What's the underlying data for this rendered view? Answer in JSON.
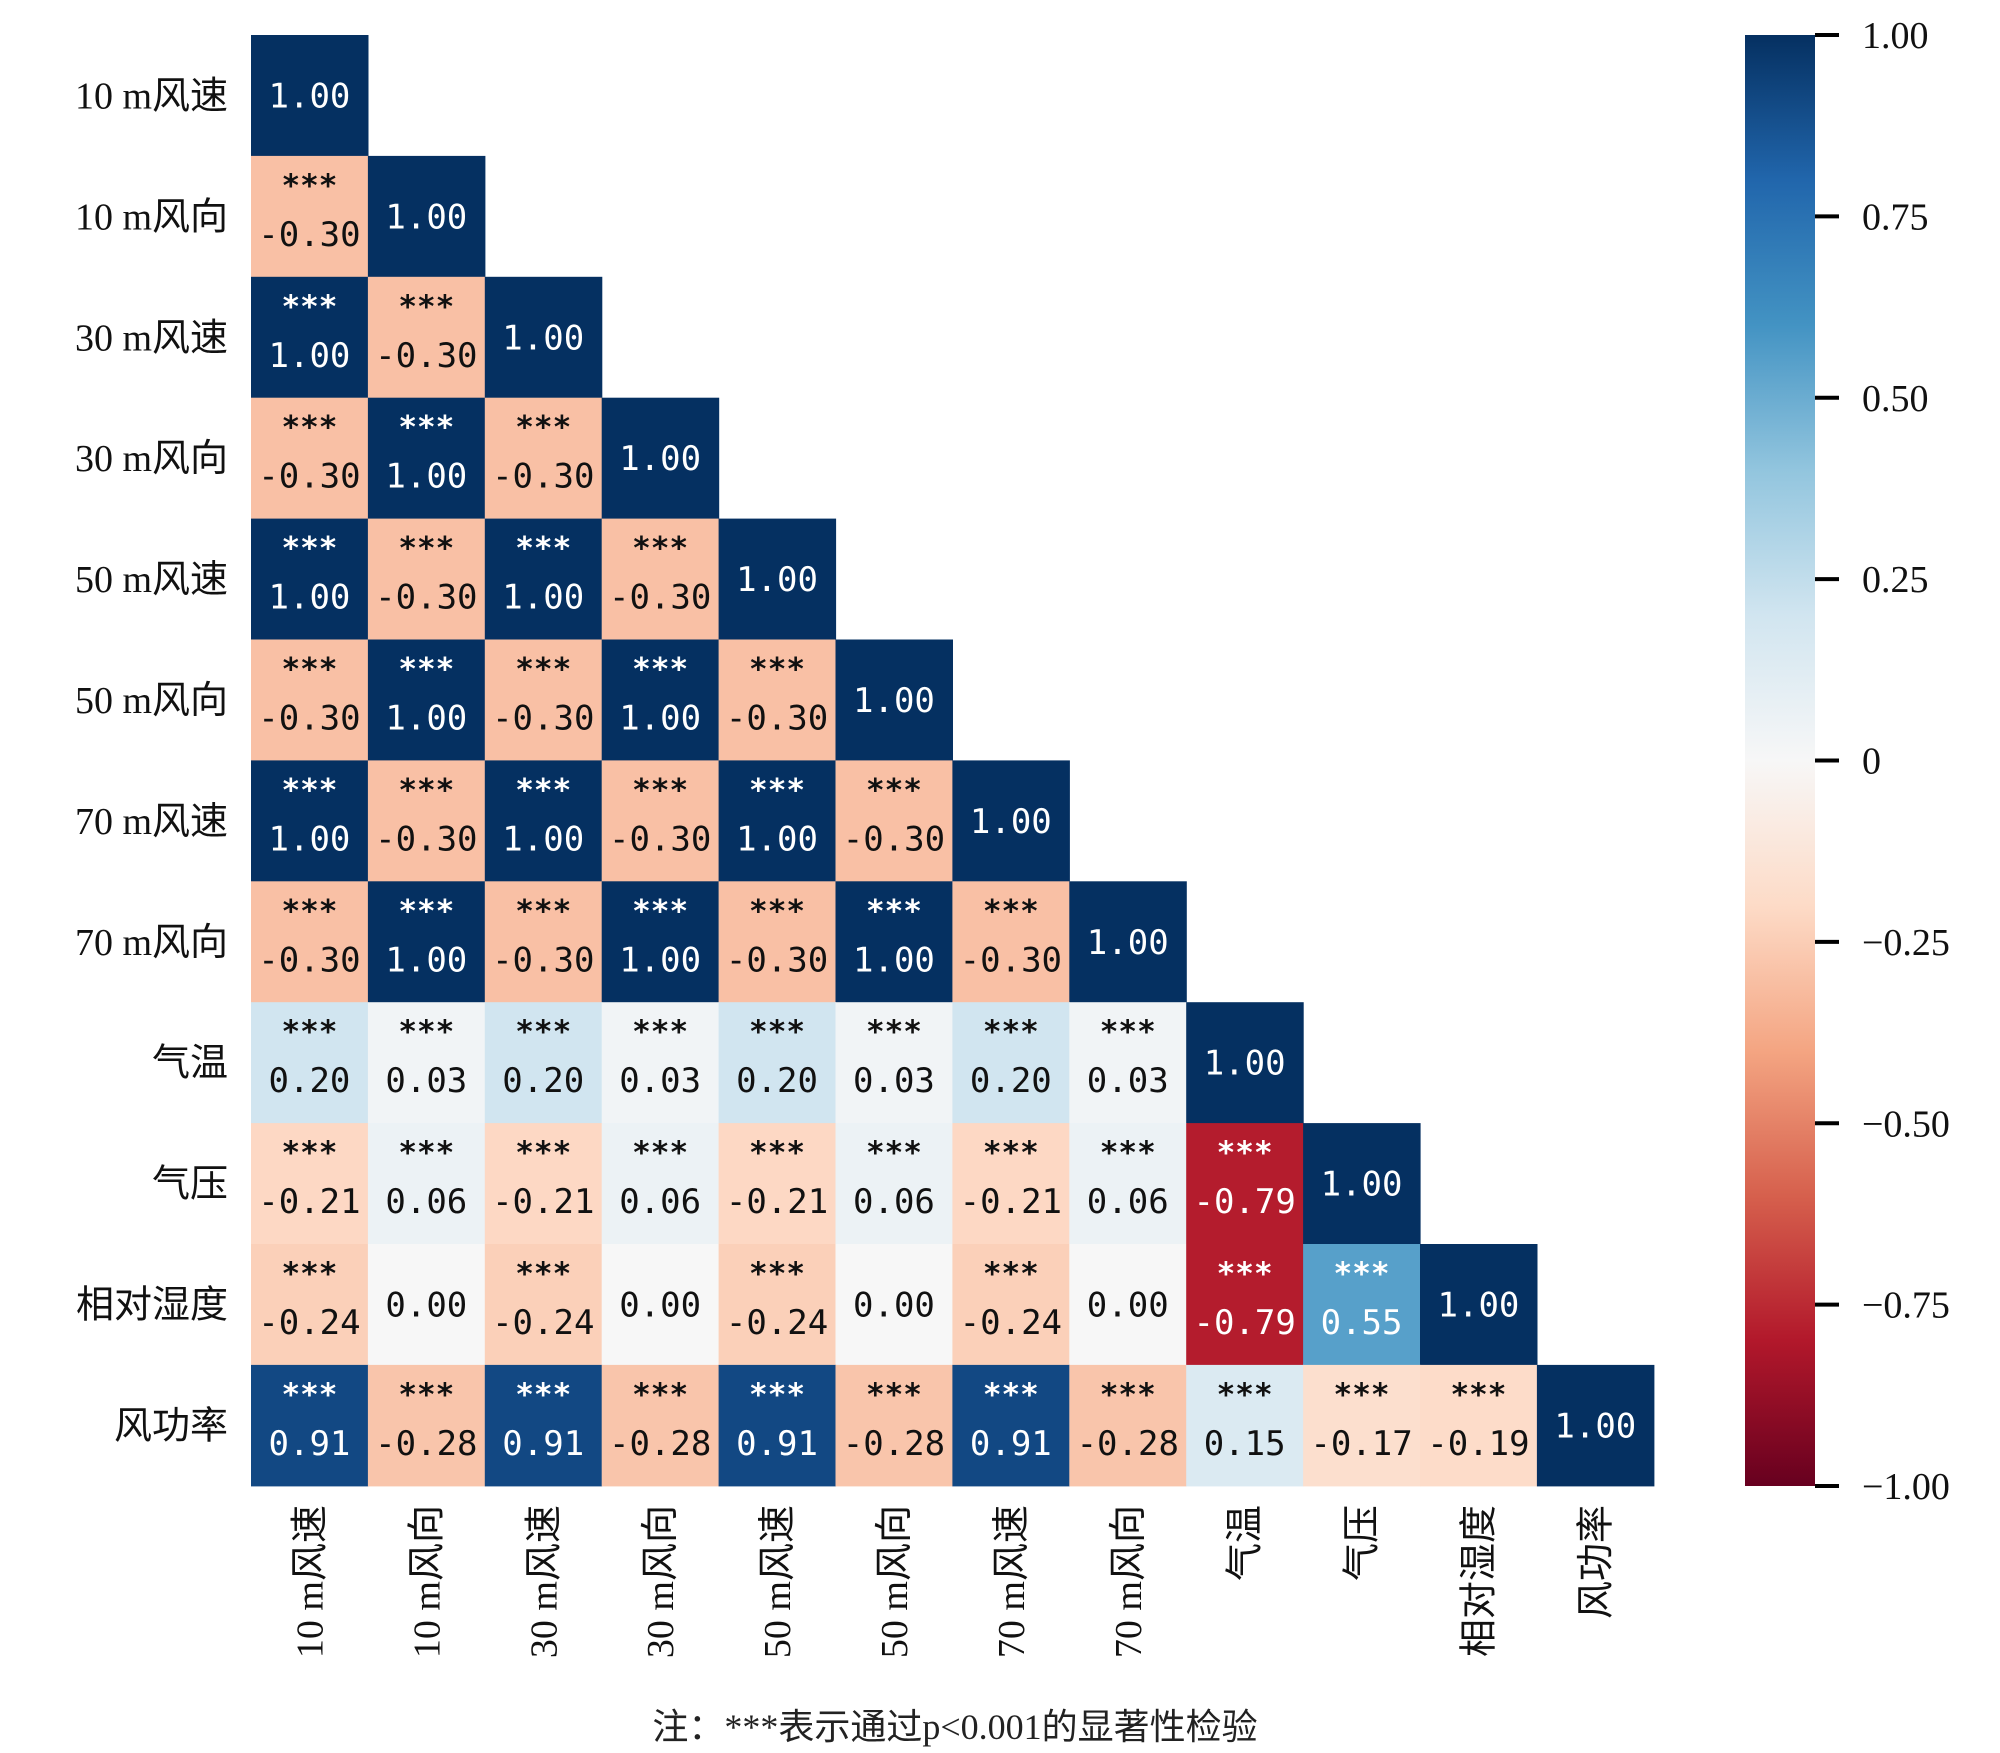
{
  "chart_data": {
    "type": "heatmap",
    "title": "",
    "labels": [
      "10 m风速",
      "10 m风向",
      "30 m风速",
      "30 m风向",
      "50 m风速",
      "50 m风向",
      "70 m风速",
      "70 m风向",
      "气温",
      "气压",
      "相对湿度",
      "风功率"
    ],
    "values": [
      [
        1.0
      ],
      [
        -0.3,
        1.0
      ],
      [
        1.0,
        -0.3,
        1.0
      ],
      [
        -0.3,
        1.0,
        -0.3,
        1.0
      ],
      [
        1.0,
        -0.3,
        1.0,
        -0.3,
        1.0
      ],
      [
        -0.3,
        1.0,
        -0.3,
        1.0,
        -0.3,
        1.0
      ],
      [
        1.0,
        -0.3,
        1.0,
        -0.3,
        1.0,
        -0.3,
        1.0
      ],
      [
        -0.3,
        1.0,
        -0.3,
        1.0,
        -0.3,
        1.0,
        -0.3,
        1.0
      ],
      [
        0.2,
        0.03,
        0.2,
        0.03,
        0.2,
        0.03,
        0.2,
        0.03,
        1.0
      ],
      [
        -0.21,
        0.06,
        -0.21,
        0.06,
        -0.21,
        0.06,
        -0.21,
        0.06,
        -0.79,
        1.0
      ],
      [
        -0.24,
        0.0,
        -0.24,
        0.0,
        -0.24,
        0.0,
        -0.24,
        0.0,
        -0.79,
        0.55,
        1.0
      ],
      [
        0.91,
        -0.28,
        0.91,
        -0.28,
        0.91,
        -0.28,
        0.91,
        -0.28,
        0.15,
        -0.17,
        -0.19,
        1.0
      ]
    ],
    "significance": [
      [
        ""
      ],
      [
        "***",
        ""
      ],
      [
        "***",
        "***",
        ""
      ],
      [
        "***",
        "***",
        "***",
        ""
      ],
      [
        "***",
        "***",
        "***",
        "***",
        ""
      ],
      [
        "***",
        "***",
        "***",
        "***",
        "***",
        ""
      ],
      [
        "***",
        "***",
        "***",
        "***",
        "***",
        "***",
        ""
      ],
      [
        "***",
        "***",
        "***",
        "***",
        "***",
        "***",
        "***",
        ""
      ],
      [
        "***",
        "***",
        "***",
        "***",
        "***",
        "***",
        "***",
        "***",
        ""
      ],
      [
        "***",
        "***",
        "***",
        "***",
        "***",
        "***",
        "***",
        "***",
        "***",
        ""
      ],
      [
        "***",
        "",
        "***",
        "",
        "***",
        "",
        "***",
        "",
        "***",
        "***",
        ""
      ],
      [
        "***",
        "***",
        "***",
        "***",
        "***",
        "***",
        "***",
        "***",
        "***",
        "***",
        "***",
        ""
      ]
    ],
    "colormap": "RdBu_r",
    "colormap_stops": [
      "#67001f",
      "#b2182b",
      "#d6604d",
      "#f4a582",
      "#fddbc7",
      "#f7f7f7",
      "#d1e5f0",
      "#92c5de",
      "#4393c3",
      "#2166ac",
      "#053061"
    ],
    "vmin": -1,
    "vmax": 1,
    "colorbar_ticks": [
      1.0,
      0.75,
      0.5,
      0.25,
      0,
      -0.25,
      -0.5,
      -0.75,
      -1.0
    ],
    "colorbar_tick_labels": [
      "1.00",
      "0.75",
      "0.50",
      "0.25",
      "0",
      "−0.25",
      "−0.50",
      "−0.75",
      "−1.00"
    ],
    "note": "注：***表示通过p<0.001的显著性检验"
  }
}
